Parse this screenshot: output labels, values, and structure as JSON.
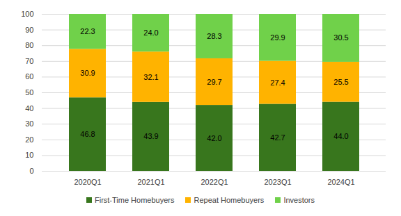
{
  "chart_data": {
    "type": "bar",
    "stacked": true,
    "data_labels": true,
    "grid": true,
    "legend": "bottom",
    "categories": [
      "2020Q1",
      "2021Q1",
      "2022Q1",
      "2023Q1",
      "2024Q1"
    ],
    "ylim": [
      0,
      100
    ],
    "yticks": [
      0,
      10,
      20,
      30,
      40,
      50,
      60,
      70,
      80,
      90,
      100
    ],
    "series": [
      {
        "name": "First-Time Homebuyers",
        "color": "#38761d",
        "values": [
          46.8,
          43.9,
          42.0,
          42.7,
          44.0
        ],
        "value_labels": [
          "46.8",
          "43.9",
          "42.0",
          "42.7",
          "44.0"
        ]
      },
      {
        "name": "Repeat Homebuyers",
        "color": "#ffb300",
        "values": [
          30.9,
          32.1,
          29.7,
          27.4,
          25.5
        ],
        "value_labels": [
          "30.9",
          "32.1",
          "29.7",
          "27.4",
          "25.5"
        ]
      },
      {
        "name": "Investors",
        "color": "#70d14a",
        "values": [
          22.3,
          24.0,
          28.3,
          29.9,
          30.5
        ],
        "value_labels": [
          "22.3",
          "24.0",
          "28.3",
          "29.9",
          "30.5"
        ]
      }
    ]
  }
}
